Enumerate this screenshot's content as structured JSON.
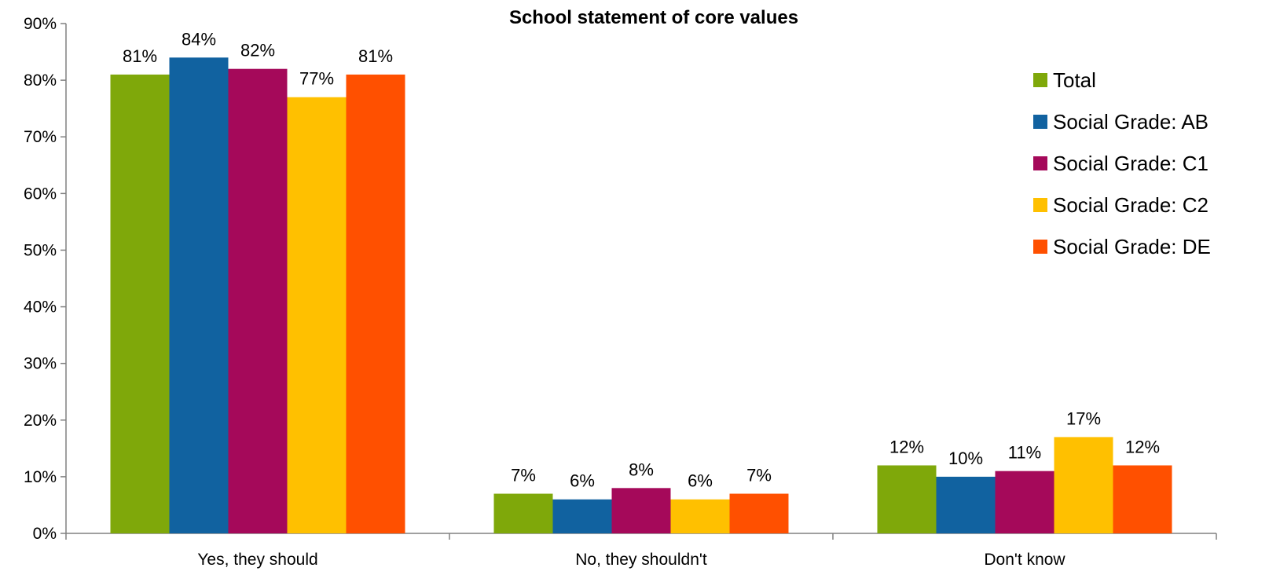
{
  "chart_data": {
    "type": "bar",
    "title": "School statement of core values",
    "xlabel": "",
    "ylabel": "",
    "categories": [
      "Yes, they should",
      "No, they shouldn't",
      "Don't know"
    ],
    "ylim": [
      0,
      90
    ],
    "y_ticks": [
      "0%",
      "10%",
      "20%",
      "30%",
      "40%",
      "50%",
      "60%",
      "70%",
      "80%",
      "90%"
    ],
    "legend_position": "right",
    "grid": false,
    "series": [
      {
        "name": "Total",
        "color": "#7FA80A",
        "values": [
          81,
          7,
          12
        ],
        "labels": [
          "81%",
          "7%",
          "12%"
        ]
      },
      {
        "name": "Social Grade: AB",
        "color": "#1162A0",
        "values": [
          84,
          6,
          10
        ],
        "labels": [
          "84%",
          "6%",
          "10%"
        ]
      },
      {
        "name": "Social Grade: C1",
        "color": "#A5095A",
        "values": [
          82,
          8,
          11
        ],
        "labels": [
          "82%",
          "8%",
          "11%"
        ]
      },
      {
        "name": "Social Grade: C2",
        "color": "#FFC000",
        "values": [
          77,
          6,
          17
        ],
        "labels": [
          "77%",
          "6%",
          "17%"
        ]
      },
      {
        "name": "Social Grade: DE",
        "color": "#FF5000",
        "values": [
          81,
          7,
          12
        ],
        "labels": [
          "81%",
          "7%",
          "12%"
        ]
      }
    ]
  }
}
